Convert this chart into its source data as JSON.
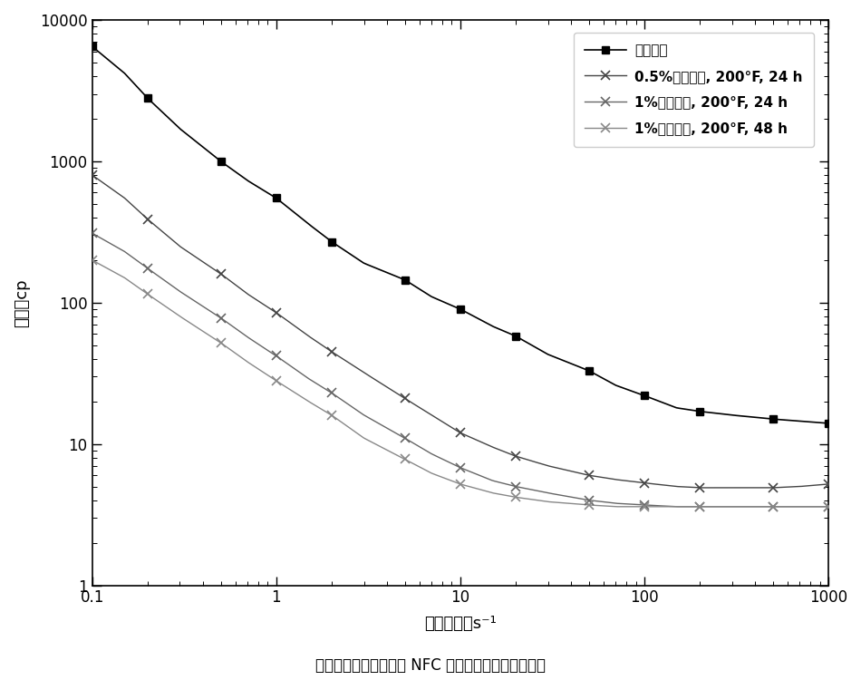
{
  "title": "在用过硫酸钠处理之后 NFC 的粘度与剪切速率的函数",
  "xlabel": "剪切速率，s⁻¹",
  "ylabel": "粘度，cp",
  "xlim": [
    0.1,
    1000
  ],
  "ylim": [
    1,
    10000
  ],
  "legend_labels": [
    "无破裂剂",
    "0.5%过硫酸钠, 200°F, 24 h",
    "1%过硫酸钠, 200°F, 24 h",
    "1%过硫酸钠, 200°F, 48 h"
  ],
  "legend_bold": [
    false,
    true,
    true,
    true
  ],
  "series": [
    {
      "x": [
        0.1,
        0.15,
        0.2,
        0.3,
        0.5,
        0.7,
        1.0,
        1.5,
        2.0,
        3.0,
        5.0,
        7.0,
        10.0,
        15.0,
        20.0,
        30.0,
        50.0,
        70.0,
        100.0,
        150.0,
        200.0,
        300.0,
        500.0,
        700.0,
        1000.0
      ],
      "y": [
        6500,
        4200,
        2800,
        1700,
        1000,
        730,
        550,
        360,
        270,
        190,
        145,
        110,
        90,
        68,
        58,
        43,
        33,
        26,
        22,
        18,
        17,
        16,
        15,
        14.5,
        14
      ]
    },
    {
      "x": [
        0.1,
        0.15,
        0.2,
        0.3,
        0.5,
        0.7,
        1.0,
        1.5,
        2.0,
        3.0,
        5.0,
        7.0,
        10.0,
        15.0,
        20.0,
        30.0,
        50.0,
        70.0,
        100.0,
        150.0,
        200.0,
        300.0,
        500.0,
        700.0,
        1000.0
      ],
      "y": [
        800,
        550,
        390,
        250,
        160,
        115,
        85,
        58,
        45,
        32,
        21,
        16,
        12,
        9.5,
        8.2,
        7.0,
        6.0,
        5.6,
        5.3,
        5.0,
        4.9,
        4.9,
        4.9,
        5.0,
        5.2
      ]
    },
    {
      "x": [
        0.1,
        0.15,
        0.2,
        0.3,
        0.5,
        0.7,
        1.0,
        1.5,
        2.0,
        3.0,
        5.0,
        7.0,
        10.0,
        15.0,
        20.0,
        30.0,
        50.0,
        70.0,
        100.0,
        150.0,
        200.0,
        300.0,
        500.0,
        700.0,
        1000.0
      ],
      "y": [
        310,
        230,
        175,
        120,
        78,
        57,
        42,
        29,
        23,
        16,
        11,
        8.5,
        6.8,
        5.5,
        5.0,
        4.5,
        4.0,
        3.8,
        3.7,
        3.6,
        3.6,
        3.6,
        3.6,
        3.6,
        3.6
      ]
    },
    {
      "x": [
        0.1,
        0.15,
        0.2,
        0.3,
        0.5,
        0.7,
        1.0,
        1.5,
        2.0,
        3.0,
        5.0,
        7.0,
        10.0,
        15.0,
        20.0,
        30.0,
        50.0,
        70.0,
        100.0,
        150.0,
        200.0,
        300.0,
        500.0,
        700.0,
        1000.0
      ],
      "y": [
        200,
        150,
        115,
        80,
        52,
        38,
        28,
        20,
        16,
        11,
        7.8,
        6.2,
        5.2,
        4.5,
        4.2,
        3.9,
        3.7,
        3.6,
        3.6,
        3.6,
        3.6,
        3.6,
        3.6,
        3.6,
        3.6
      ]
    }
  ],
  "line_colors": [
    "#000000",
    "#444444",
    "#666666",
    "#888888"
  ],
  "marker_styles": [
    "D",
    "x",
    "x",
    "x"
  ],
  "marker_sizes": [
    5,
    6,
    6,
    6
  ],
  "background_color": "#ffffff"
}
